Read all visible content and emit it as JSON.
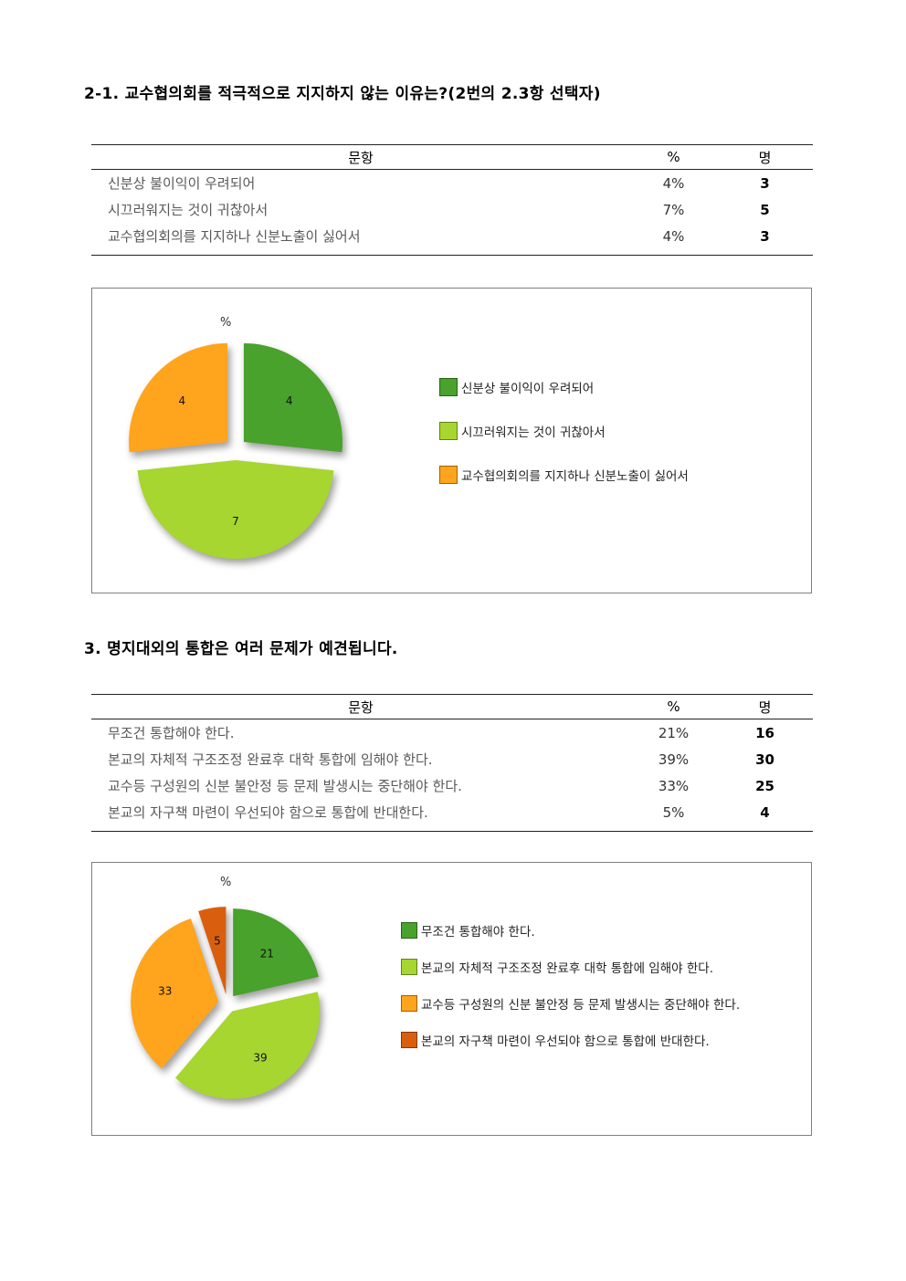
{
  "sections": [
    {
      "title": "2-1. 교수협의회를 적극적으로 지지하지 않는 이유는?(2번의 2.3항 선택자)",
      "table": {
        "col_question": "문항",
        "col_percent": "%",
        "col_count": "명",
        "rows": [
          {
            "label": "신분상 불이익이 우려되어",
            "percent": "4%",
            "count": "3"
          },
          {
            "label": "시끄러워지는 것이 귀찮아서",
            "percent": "7%",
            "count": "5"
          },
          {
            "label": "교수협의회의를 지지하나 신분노출이 싫어서",
            "percent": "4%",
            "count": "3"
          }
        ]
      }
    },
    {
      "title": "3. 명지대외의 통합은 여러 문제가 예견됩니다.",
      "table": {
        "col_question": "문항",
        "col_percent": "%",
        "col_count": "명",
        "rows": [
          {
            "label": "무조건 통합해야 한다.",
            "percent": "21%",
            "count": "16"
          },
          {
            "label": "본교의 자체적 구조조정 완료후 대학 통합에 임해야  한다.",
            "percent": "39%",
            "count": "30"
          },
          {
            "label": "교수등 구성원의 신분 불안정 등 문제 발생시는 중단해야  한다.",
            "percent": "33%",
            "count": "25"
          },
          {
            "label": "본교의 자구책 마련이 우선되야 함으로 통합에 반대한다.",
            "percent": "5%",
            "count": "4"
          }
        ]
      }
    }
  ],
  "chart_data": [
    {
      "type": "pie",
      "title": "",
      "axis_label": "%",
      "labels": [
        "신분상 불이익이 우려되어",
        "시끄러워지는 것이 귀찮아서",
        "교수협의회의를 지지하나 신분노출이 싫어서"
      ],
      "values": [
        4,
        7,
        4
      ],
      "colors": [
        "#48a22b",
        "#a6d62f",
        "#ffa41d"
      ],
      "legend_position": "right",
      "exploded": true
    },
    {
      "type": "pie",
      "title": "",
      "axis_label": "%",
      "labels": [
        "무조건 통합해야 한다.",
        "본교의 자체적 구조조정 완료후 대학 통합에 임해야  한다.",
        "교수등 구성원의 신분 불안정 등 문제 발생시는 중단해야  한다.",
        "본교의 자구책 마련이 우선되야 함으로 통합에 반대한다."
      ],
      "values": [
        21,
        39,
        33,
        5
      ],
      "colors": [
        "#48a22b",
        "#a6d62f",
        "#ffa41d",
        "#d95f0e"
      ],
      "legend_position": "right",
      "exploded": true
    }
  ]
}
